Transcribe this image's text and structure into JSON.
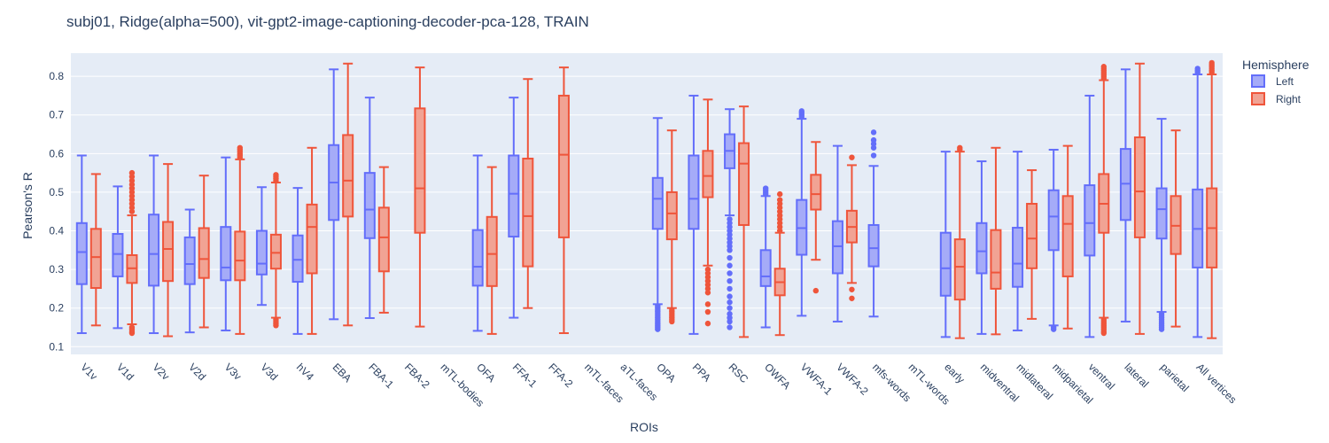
{
  "chart_data": {
    "type": "box",
    "title": "subj01, Ridge(alpha=500), vit-gpt2-image-captioning-decoder-pca-128, TRAIN",
    "xlabel": "ROIs",
    "ylabel": "Pearson's R",
    "ylim": [
      0.08,
      0.86
    ],
    "yticks": [
      0.1,
      0.2,
      0.3,
      0.4,
      0.5,
      0.6,
      0.7,
      0.8
    ],
    "grid": true,
    "legend": {
      "title": "Hemisphere",
      "position": "top-right"
    },
    "categories": [
      "V1v",
      "V1d",
      "V2v",
      "V2d",
      "V3v",
      "V3d",
      "hV4",
      "EBA",
      "FBA-1",
      "FBA-2",
      "mTL-bodies",
      "OFA",
      "FFA-1",
      "FFA-2",
      "mTL-faces",
      "aTL-faces",
      "OPA",
      "PPA",
      "RSC",
      "OWFA",
      "VWFA-1",
      "VWFA-2",
      "mfs-words",
      "mTL-words",
      "early",
      "midventral",
      "midlateral",
      "midparietal",
      "ventral",
      "lateral",
      "parietal",
      "All vertices"
    ],
    "series": [
      {
        "name": "Left",
        "color": "#636efa",
        "fill": "#a5abf8",
        "boxes": [
          {
            "min": 0.135,
            "q1": 0.262,
            "median": 0.345,
            "q3": 0.42,
            "max": 0.595,
            "outliers": []
          },
          {
            "min": 0.148,
            "q1": 0.282,
            "median": 0.34,
            "q3": 0.392,
            "max": 0.515,
            "outliers": []
          },
          {
            "min": 0.135,
            "q1": 0.258,
            "median": 0.34,
            "q3": 0.442,
            "max": 0.595,
            "outliers": []
          },
          {
            "min": 0.137,
            "q1": 0.262,
            "median": 0.314,
            "q3": 0.383,
            "max": 0.455,
            "outliers": []
          },
          {
            "min": 0.142,
            "q1": 0.272,
            "median": 0.305,
            "q3": 0.41,
            "max": 0.59,
            "outliers": []
          },
          {
            "min": 0.208,
            "q1": 0.287,
            "median": 0.315,
            "q3": 0.4,
            "max": 0.513,
            "outliers": []
          },
          {
            "min": 0.133,
            "q1": 0.268,
            "median": 0.325,
            "q3": 0.388,
            "max": 0.511,
            "outliers": []
          },
          {
            "min": 0.171,
            "q1": 0.428,
            "median": 0.525,
            "q3": 0.622,
            "max": 0.818,
            "outliers": []
          },
          {
            "min": 0.174,
            "q1": 0.381,
            "median": 0.455,
            "q3": 0.55,
            "max": 0.745,
            "outliers": []
          },
          null,
          null,
          {
            "min": 0.141,
            "q1": 0.258,
            "median": 0.307,
            "q3": 0.402,
            "max": 0.595,
            "outliers": []
          },
          {
            "min": 0.175,
            "q1": 0.385,
            "median": 0.496,
            "q3": 0.595,
            "max": 0.745,
            "outliers": []
          },
          null,
          null,
          null,
          {
            "min": 0.21,
            "q1": 0.405,
            "median": 0.483,
            "q3": 0.537,
            "max": 0.692,
            "outliers": [
              0.145,
              0.15,
              0.155,
              0.16,
              0.165,
              0.17,
              0.175,
              0.18,
              0.185,
              0.19,
              0.195,
              0.2,
              0.205
            ]
          },
          {
            "min": 0.133,
            "q1": 0.405,
            "median": 0.483,
            "q3": 0.595,
            "max": 0.75,
            "outliers": []
          },
          {
            "min": 0.44,
            "q1": 0.562,
            "median": 0.607,
            "q3": 0.65,
            "max": 0.715,
            "outliers": [
              0.15,
              0.165,
              0.175,
              0.185,
              0.2,
              0.215,
              0.23,
              0.25,
              0.27,
              0.29,
              0.31,
              0.33,
              0.35,
              0.36,
              0.37,
              0.38,
              0.39,
              0.4,
              0.41,
              0.42,
              0.43
            ]
          },
          {
            "min": 0.15,
            "q1": 0.257,
            "median": 0.282,
            "q3": 0.35,
            "max": 0.49,
            "outliers": [
              0.495,
              0.5,
              0.505,
              0.51
            ]
          },
          {
            "min": 0.18,
            "q1": 0.338,
            "median": 0.407,
            "q3": 0.48,
            "max": 0.69,
            "outliers": [
              0.695,
              0.7,
              0.705,
              0.71
            ]
          },
          {
            "min": 0.165,
            "q1": 0.29,
            "median": 0.36,
            "q3": 0.425,
            "max": 0.62,
            "outliers": []
          },
          {
            "min": 0.178,
            "q1": 0.308,
            "median": 0.355,
            "q3": 0.415,
            "max": 0.568,
            "outliers": [
              0.595,
              0.615,
              0.625,
              0.635,
              0.655
            ]
          },
          null,
          {
            "min": 0.125,
            "q1": 0.232,
            "median": 0.303,
            "q3": 0.395,
            "max": 0.605,
            "outliers": []
          },
          {
            "min": 0.133,
            "q1": 0.29,
            "median": 0.347,
            "q3": 0.42,
            "max": 0.58,
            "outliers": []
          },
          {
            "min": 0.142,
            "q1": 0.255,
            "median": 0.315,
            "q3": 0.408,
            "max": 0.605,
            "outliers": []
          },
          {
            "min": 0.155,
            "q1": 0.35,
            "median": 0.437,
            "q3": 0.505,
            "max": 0.61,
            "outliers": [
              0.145,
              0.15
            ]
          },
          {
            "min": 0.125,
            "q1": 0.336,
            "median": 0.42,
            "q3": 0.518,
            "max": 0.75,
            "outliers": []
          },
          {
            "min": 0.165,
            "q1": 0.428,
            "median": 0.522,
            "q3": 0.612,
            "max": 0.818,
            "outliers": []
          },
          {
            "min": 0.19,
            "q1": 0.38,
            "median": 0.456,
            "q3": 0.51,
            "max": 0.69,
            "outliers": [
              0.145,
              0.15,
              0.155,
              0.16,
              0.165,
              0.17,
              0.175,
              0.18,
              0.185
            ]
          },
          {
            "min": 0.125,
            "q1": 0.305,
            "median": 0.405,
            "q3": 0.507,
            "max": 0.805,
            "outliers": [
              0.81,
              0.815,
              0.82
            ]
          }
        ]
      },
      {
        "name": "Right",
        "color": "#ef553b",
        "fill": "#f1a394",
        "boxes": [
          {
            "min": 0.155,
            "q1": 0.252,
            "median": 0.332,
            "q3": 0.405,
            "max": 0.547,
            "outliers": []
          },
          {
            "min": 0.158,
            "q1": 0.265,
            "median": 0.303,
            "q3": 0.337,
            "max": 0.44,
            "outliers": [
              0.135,
              0.14,
              0.145,
              0.15,
              0.45,
              0.46,
              0.47,
              0.48,
              0.49,
              0.5,
              0.51,
              0.52,
              0.53,
              0.54,
              0.55
            ]
          },
          {
            "min": 0.127,
            "q1": 0.27,
            "median": 0.353,
            "q3": 0.423,
            "max": 0.573,
            "outliers": []
          },
          {
            "min": 0.15,
            "q1": 0.278,
            "median": 0.327,
            "q3": 0.407,
            "max": 0.543,
            "outliers": []
          },
          {
            "min": 0.133,
            "q1": 0.272,
            "median": 0.323,
            "q3": 0.398,
            "max": 0.585,
            "outliers": [
              0.59,
              0.595,
              0.6,
              0.605,
              0.61,
              0.615
            ]
          },
          {
            "min": 0.175,
            "q1": 0.302,
            "median": 0.343,
            "q3": 0.39,
            "max": 0.525,
            "outliers": [
              0.155,
              0.16,
              0.165,
              0.17,
              0.53,
              0.535,
              0.54,
              0.545
            ]
          },
          {
            "min": 0.133,
            "q1": 0.29,
            "median": 0.41,
            "q3": 0.468,
            "max": 0.615,
            "outliers": []
          },
          {
            "min": 0.155,
            "q1": 0.437,
            "median": 0.53,
            "q3": 0.648,
            "max": 0.833,
            "outliers": []
          },
          {
            "min": 0.188,
            "q1": 0.295,
            "median": 0.383,
            "q3": 0.46,
            "max": 0.565,
            "outliers": []
          },
          {
            "min": 0.152,
            "q1": 0.395,
            "median": 0.51,
            "q3": 0.717,
            "max": 0.823,
            "outliers": []
          },
          null,
          {
            "min": 0.133,
            "q1": 0.257,
            "median": 0.34,
            "q3": 0.436,
            "max": 0.565,
            "outliers": []
          },
          {
            "min": 0.2,
            "q1": 0.308,
            "median": 0.438,
            "q3": 0.587,
            "max": 0.793,
            "outliers": []
          },
          {
            "min": 0.135,
            "q1": 0.383,
            "median": 0.597,
            "q3": 0.75,
            "max": 0.823,
            "outliers": []
          },
          null,
          null,
          {
            "min": 0.2,
            "q1": 0.378,
            "median": 0.445,
            "q3": 0.5,
            "max": 0.66,
            "outliers": [
              0.165,
              0.17,
              0.175,
              0.18,
              0.185,
              0.19,
              0.195
            ]
          },
          {
            "min": 0.31,
            "q1": 0.487,
            "median": 0.542,
            "q3": 0.607,
            "max": 0.74,
            "outliers": [
              0.16,
              0.19,
              0.21,
              0.24,
              0.25,
              0.26,
              0.27,
              0.28,
              0.29,
              0.3
            ]
          },
          {
            "min": 0.125,
            "q1": 0.415,
            "median": 0.574,
            "q3": 0.627,
            "max": 0.722,
            "outliers": []
          },
          {
            "min": 0.13,
            "q1": 0.233,
            "median": 0.267,
            "q3": 0.302,
            "max": 0.395,
            "outliers": [
              0.4,
              0.41,
              0.42,
              0.43,
              0.44,
              0.45,
              0.46,
              0.47,
              0.48,
              0.495
            ]
          },
          {
            "min": 0.325,
            "q1": 0.455,
            "median": 0.495,
            "q3": 0.545,
            "max": 0.63,
            "outliers": [
              0.245
            ]
          },
          {
            "min": 0.265,
            "q1": 0.37,
            "median": 0.41,
            "q3": 0.452,
            "max": 0.57,
            "outliers": [
              0.225,
              0.248,
              0.59
            ]
          },
          null,
          null,
          {
            "min": 0.122,
            "q1": 0.222,
            "median": 0.307,
            "q3": 0.378,
            "max": 0.605,
            "outliers": [
              0.61,
              0.615
            ]
          },
          {
            "min": 0.132,
            "q1": 0.25,
            "median": 0.292,
            "q3": 0.402,
            "max": 0.615,
            "outliers": []
          },
          {
            "min": 0.172,
            "q1": 0.303,
            "median": 0.38,
            "q3": 0.47,
            "max": 0.557,
            "outliers": []
          },
          {
            "min": 0.147,
            "q1": 0.282,
            "median": 0.418,
            "q3": 0.49,
            "max": 0.62,
            "outliers": []
          },
          {
            "min": 0.175,
            "q1": 0.395,
            "median": 0.47,
            "q3": 0.547,
            "max": 0.79,
            "outliers": [
              0.135,
              0.14,
              0.145,
              0.15,
              0.155,
              0.16,
              0.165,
              0.17,
              0.795,
              0.8,
              0.805,
              0.81,
              0.815,
              0.82,
              0.825
            ]
          },
          {
            "min": 0.133,
            "q1": 0.383,
            "median": 0.502,
            "q3": 0.642,
            "max": 0.833,
            "outliers": []
          },
          {
            "min": 0.152,
            "q1": 0.34,
            "median": 0.413,
            "q3": 0.49,
            "max": 0.66,
            "outliers": []
          },
          {
            "min": 0.122,
            "q1": 0.305,
            "median": 0.407,
            "q3": 0.51,
            "max": 0.805,
            "outliers": [
              0.81,
              0.815,
              0.82,
              0.825,
              0.83,
              0.835
            ]
          }
        ]
      }
    ]
  }
}
